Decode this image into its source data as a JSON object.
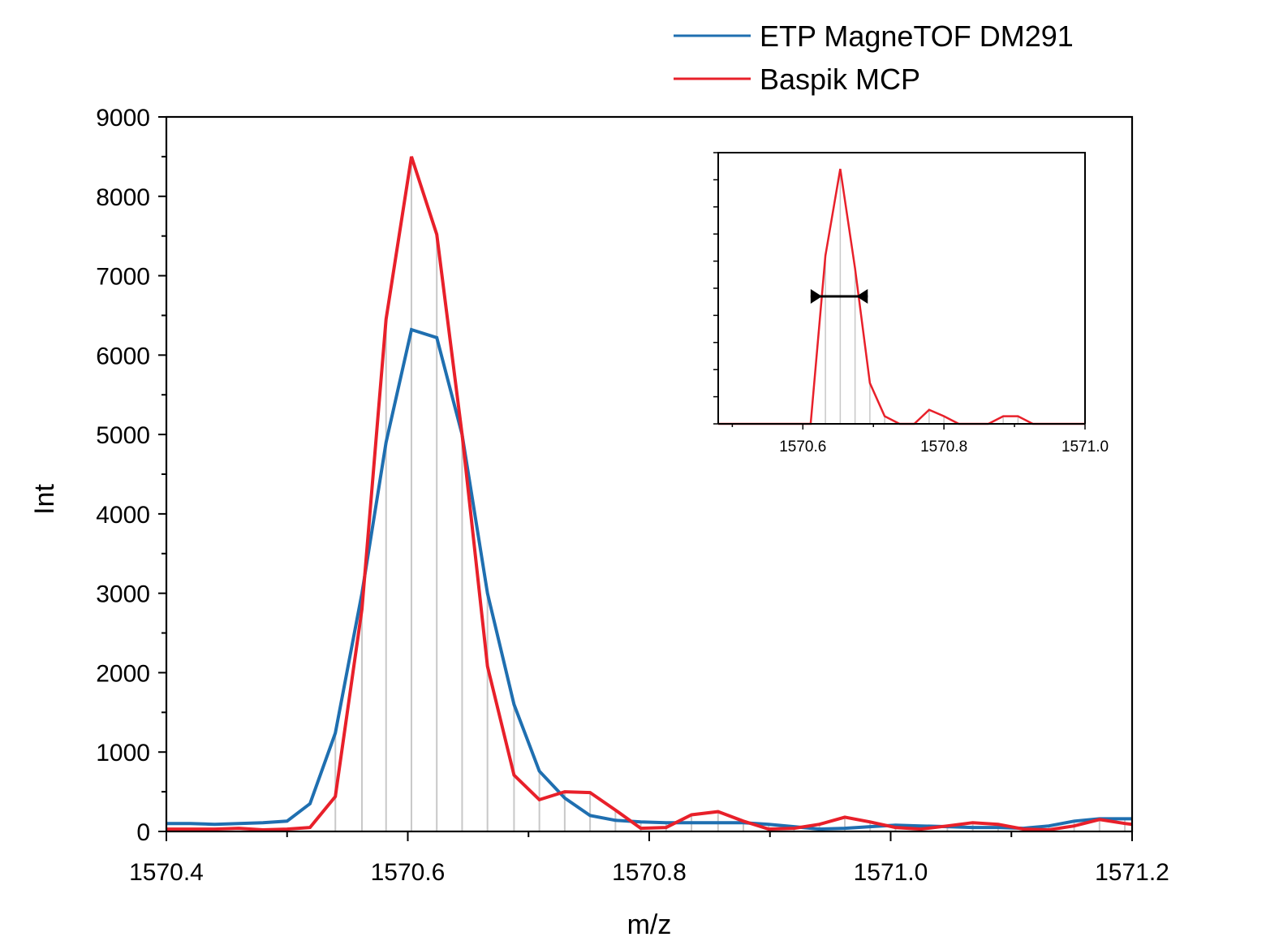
{
  "chart_data": [
    {
      "type": "line",
      "xlabel": "m/z",
      "ylabel": "Int",
      "xlim": [
        1570.4,
        1571.2
      ],
      "ylim": [
        0,
        9000
      ],
      "x_ticks": [
        "1570.4",
        "1570.6",
        "1570.8",
        "1571.0",
        "1571.2"
      ],
      "y_ticks": [
        "0",
        "1000",
        "2000",
        "3000",
        "4000",
        "5000",
        "6000",
        "7000",
        "8000",
        "9000"
      ],
      "legend_position": "top-right, outside plot",
      "series": [
        {
          "name": "ETP MagneTOF DM291",
          "color": "#1f6fb0",
          "x": [
            1570.4,
            1570.42,
            1570.44,
            1570.46,
            1570.48,
            1570.5,
            1570.519,
            1570.54,
            1570.562,
            1570.582,
            1570.603,
            1570.624,
            1570.645,
            1570.666,
            1570.688,
            1570.709,
            1570.73,
            1570.751,
            1570.772,
            1570.793,
            1570.814,
            1570.835,
            1570.857,
            1570.878,
            1570.899,
            1570.92,
            1570.941,
            1570.962,
            1570.983,
            1571.004,
            1571.025,
            1571.047,
            1571.068,
            1571.089,
            1571.11,
            1571.131,
            1571.152,
            1571.173,
            1571.194,
            1571.2
          ],
          "values": [
            100,
            100,
            90,
            100,
            110,
            130,
            350,
            1240,
            3000,
            4900,
            6320,
            6220,
            5000,
            3000,
            1600,
            760,
            420,
            200,
            140,
            120,
            110,
            110,
            110,
            110,
            90,
            60,
            30,
            40,
            60,
            80,
            70,
            60,
            50,
            50,
            40,
            70,
            130,
            160,
            160,
            160
          ]
        },
        {
          "name": "Baspik MCP",
          "color": "#e8202a",
          "x": [
            1570.4,
            1570.42,
            1570.44,
            1570.46,
            1570.48,
            1570.5,
            1570.519,
            1570.54,
            1570.562,
            1570.582,
            1570.603,
            1570.624,
            1570.645,
            1570.666,
            1570.688,
            1570.709,
            1570.73,
            1570.751,
            1570.772,
            1570.793,
            1570.814,
            1570.835,
            1570.857,
            1570.878,
            1570.899,
            1570.92,
            1570.941,
            1570.962,
            1570.983,
            1571.004,
            1571.025,
            1571.047,
            1571.068,
            1571.089,
            1571.11,
            1571.131,
            1571.152,
            1571.173,
            1571.194,
            1571.2
          ],
          "values": [
            30,
            30,
            30,
            40,
            20,
            30,
            50,
            440,
            2800,
            6450,
            8500,
            7520,
            5000,
            2080,
            710,
            400,
            500,
            490,
            270,
            40,
            50,
            210,
            250,
            130,
            30,
            40,
            90,
            180,
            120,
            50,
            30,
            70,
            110,
            90,
            30,
            20,
            70,
            150,
            100,
            90
          ]
        }
      ],
      "stick_x": [
        1570.54,
        1570.562,
        1570.582,
        1570.603,
        1570.624,
        1570.645,
        1570.666,
        1570.688,
        1570.709,
        1570.73,
        1570.751,
        1570.772,
        1570.793,
        1570.814,
        1570.835,
        1570.857,
        1570.878,
        1570.899,
        1570.92,
        1570.941,
        1570.962,
        1570.983,
        1571.004,
        1571.025,
        1571.047,
        1571.068,
        1571.089,
        1571.11,
        1571.131,
        1571.152,
        1571.173,
        1571.194
      ]
    },
    {
      "type": "line",
      "role": "inset",
      "xlim": [
        1570.48,
        1571.0
      ],
      "ylim": [
        0,
        1
      ],
      "x_ticks": [
        "1570.6",
        "1570.8",
        "1571.0"
      ],
      "y_tick_count": 10,
      "annotation": "FWHM arrow at half maximum",
      "fwhm_y": 0.5,
      "fwhm_x": [
        1570.611,
        1570.692
      ],
      "series": [
        {
          "name": "Baspik MCP",
          "color": "#e8202a",
          "x": [
            1570.48,
            1570.6,
            1570.611,
            1570.632,
            1570.653,
            1570.674,
            1570.695,
            1570.716,
            1570.737,
            1570.758,
            1570.779,
            1570.8,
            1570.821,
            1570.842,
            1570.863,
            1570.884,
            1570.905,
            1570.926,
            1571.0
          ],
          "values": [
            0,
            0,
            0,
            0.66,
            1.0,
            0.61,
            0.16,
            0.03,
            0,
            0,
            0.055,
            0.03,
            0,
            0,
            0,
            0.03,
            0.03,
            0,
            0
          ]
        }
      ],
      "stick_x": [
        1570.632,
        1570.653,
        1570.674,
        1570.695,
        1570.716,
        1570.737,
        1570.758,
        1570.779,
        1570.8,
        1570.821,
        1570.842,
        1570.863,
        1570.884,
        1570.905,
        1570.926
      ]
    }
  ]
}
